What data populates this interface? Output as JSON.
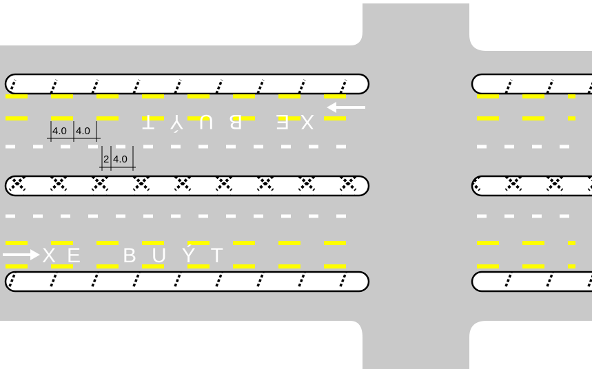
{
  "colors": {
    "background": "#ffffff",
    "road": "#c9c9c9",
    "bus_lane_marking": "#ffff00",
    "lane_marking": "#ffffff",
    "island_border": "#000000",
    "text": "#ffffff",
    "dimension_line": "#000000"
  },
  "lane_labels": {
    "upper_xe": "XE",
    "upper_buyt": "BUÝT",
    "lower_xe": "XE",
    "lower_buyt": "BUÝT"
  },
  "dimensions": {
    "dim_a1": "4.0",
    "dim_a2": "4.0",
    "dim_b1": "2",
    "dim_b2": "4.0"
  },
  "icons": {
    "upper_arrow": "arrow-left-icon",
    "lower_arrow": "arrow-right-icon"
  }
}
